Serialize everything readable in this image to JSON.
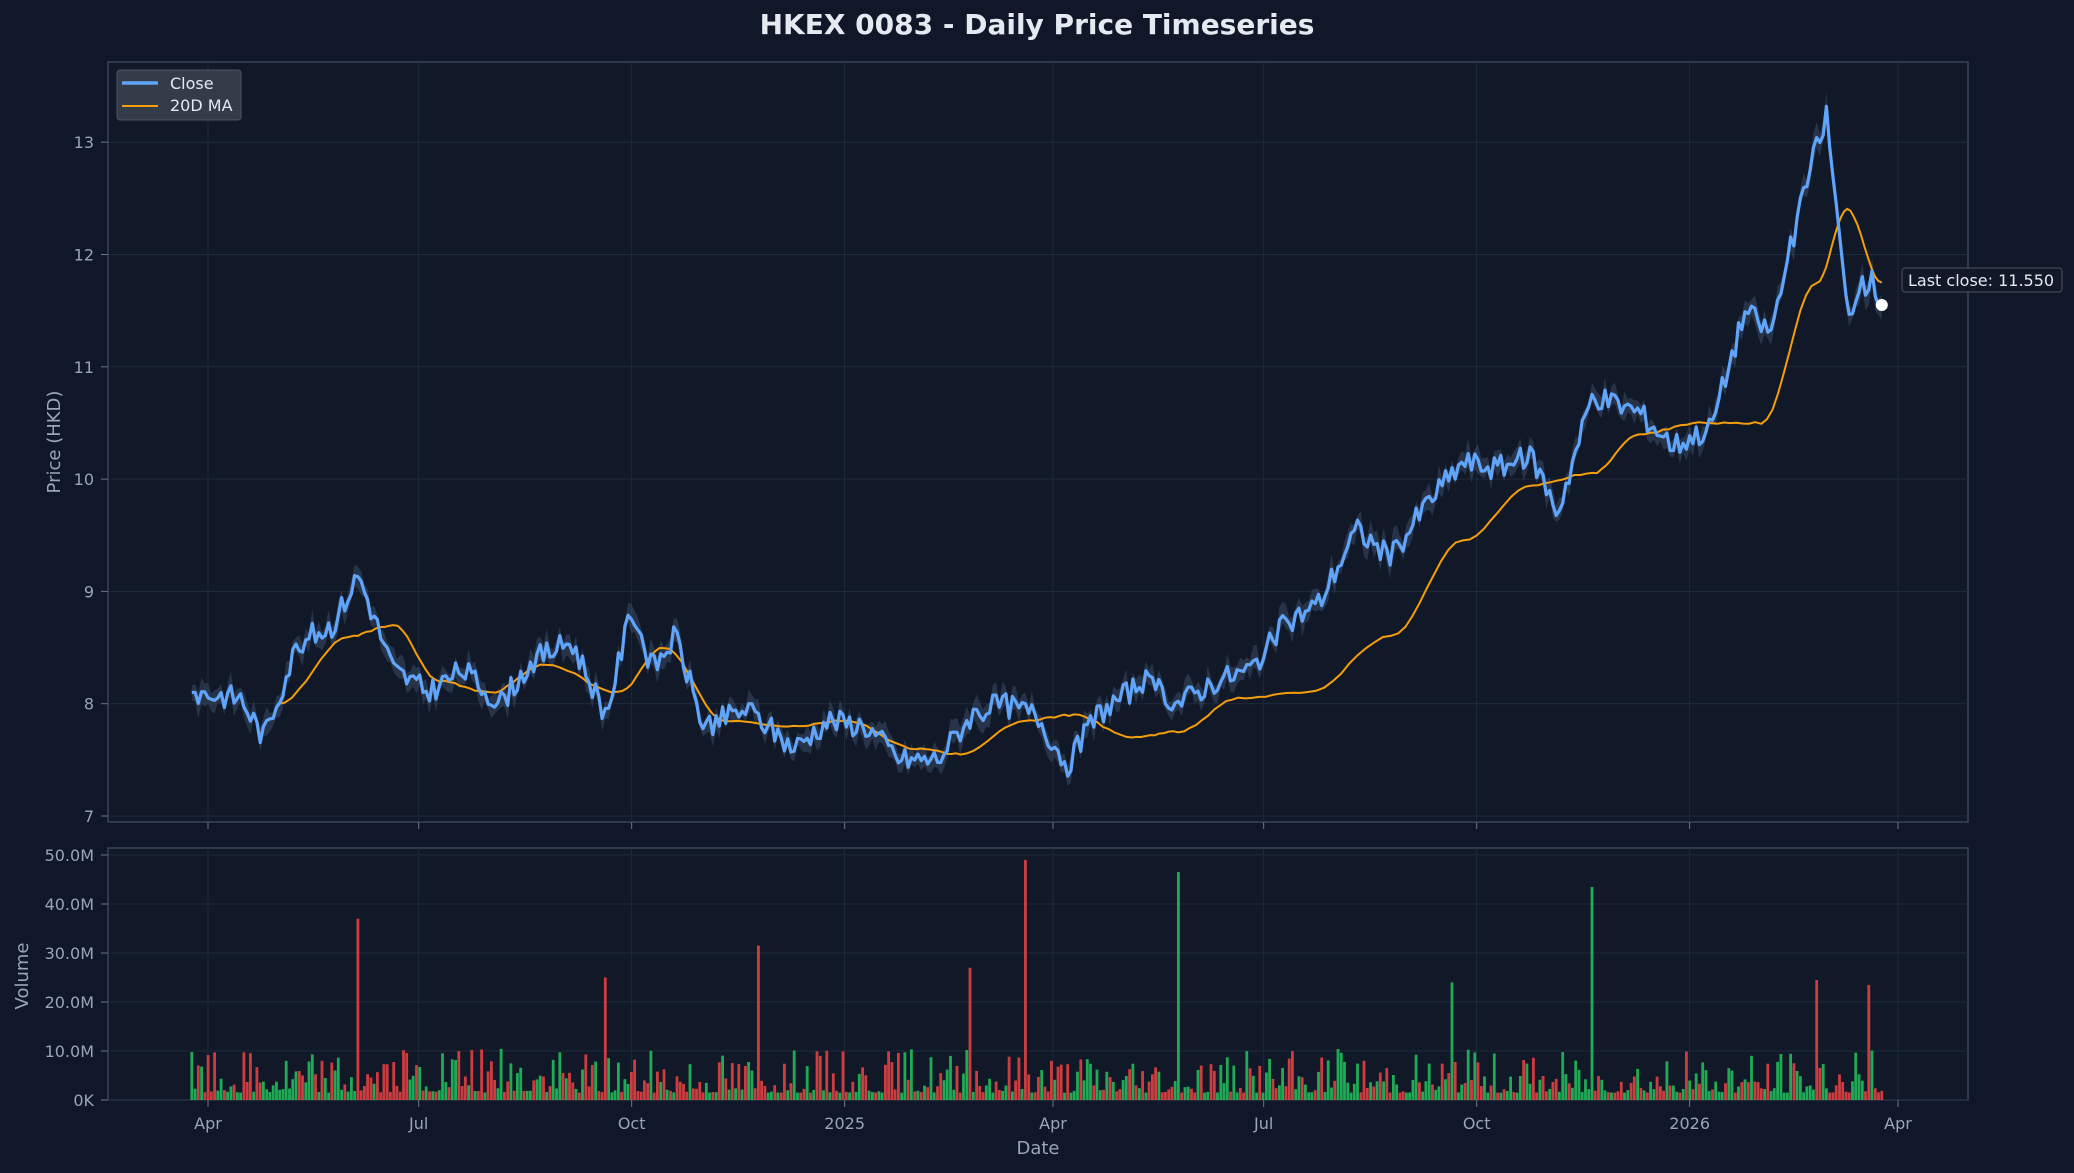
{
  "title": "HKEX 0083 - Daily Price Timeseries",
  "colors": {
    "background": "#0f1729",
    "plot_bg": "#111827",
    "close_line": "#60a5fa",
    "ma_line": "#f59e0b",
    "band": "#3b4b66",
    "volume_up": "#22c55e",
    "volume_down": "#ef4444",
    "grid": "#1f2a3d",
    "spine": "#3a4558"
  },
  "legend": {
    "items": [
      {
        "label": "Close",
        "color": "#60a5fa"
      },
      {
        "label": "20D MA",
        "color": "#f59e0b"
      }
    ]
  },
  "annotation": {
    "label": "Last close: 11.550",
    "value": 11.55
  },
  "price_axis": {
    "label": "Price (HKD)",
    "ticks": [
      "7",
      "8",
      "9",
      "10",
      "11",
      "12",
      "13"
    ]
  },
  "volume_axis": {
    "label": "Volume",
    "ticks": [
      "0K",
      "10.0M",
      "20.0M",
      "30.0M",
      "40.0M",
      "50.0M"
    ]
  },
  "x_axis": {
    "label": "Date",
    "ticks": [
      "Apr",
      "Jul",
      "Oct",
      "2025",
      "Apr",
      "Jul",
      "Oct",
      "2026",
      "Apr"
    ]
  },
  "chart_data": [
    {
      "type": "line",
      "title": "HKEX 0083 - Daily Price Timeseries",
      "xlabel": "Date",
      "ylabel": "Price (HKD)",
      "ylim": [
        6.95,
        13.7
      ],
      "x_range": [
        "2024-03-25",
        "2026-03-25"
      ],
      "grid": true,
      "legend_position": "upper left",
      "series": [
        {
          "name": "Close",
          "x": [
            "2024-03-25",
            "2024-04-15",
            "2024-04-25",
            "2024-05-10",
            "2024-05-25",
            "2024-06-05",
            "2024-06-20",
            "2024-07-05",
            "2024-07-20",
            "2024-08-05",
            "2024-08-20",
            "2024-09-05",
            "2024-09-20",
            "2024-10-01",
            "2024-10-10",
            "2024-10-20",
            "2024-11-01",
            "2024-11-20",
            "2024-12-10",
            "2024-12-25",
            "2025-01-10",
            "2025-01-25",
            "2025-02-10",
            "2025-02-25",
            "2025-03-10",
            "2025-03-25",
            "2025-04-07",
            "2025-04-20",
            "2025-05-10",
            "2025-05-25",
            "2025-06-10",
            "2025-06-25",
            "2025-07-10",
            "2025-07-25",
            "2025-08-10",
            "2025-08-25",
            "2025-09-10",
            "2025-09-25",
            "2025-10-10",
            "2025-10-25",
            "2025-11-05",
            "2025-11-20",
            "2025-12-10",
            "2025-12-25",
            "2026-01-10",
            "2026-01-25",
            "2026-02-05",
            "2026-02-20",
            "2026-03-01",
            "2026-03-10",
            "2026-03-20",
            "2026-03-25"
          ],
          "values": [
            8.1,
            8.05,
            7.7,
            8.55,
            8.7,
            9.15,
            8.3,
            8.1,
            8.3,
            8.0,
            8.4,
            8.55,
            7.9,
            8.85,
            8.3,
            8.6,
            7.8,
            7.95,
            7.6,
            7.85,
            7.8,
            7.5,
            7.5,
            7.9,
            8.0,
            7.9,
            7.45,
            7.9,
            8.2,
            8.0,
            8.2,
            8.3,
            8.7,
            8.9,
            9.55,
            9.3,
            9.8,
            10.15,
            10.1,
            10.2,
            9.7,
            10.75,
            10.6,
            10.3,
            10.45,
            11.5,
            11.3,
            12.6,
            13.25,
            11.5,
            11.8,
            11.55
          ]
        },
        {
          "name": "20D MA",
          "x": [
            "2024-05-01",
            "2024-06-01",
            "2024-06-20",
            "2024-07-10",
            "2024-08-01",
            "2024-08-25",
            "2024-09-25",
            "2024-10-15",
            "2024-11-10",
            "2024-12-10",
            "2025-01-01",
            "2025-02-01",
            "2025-02-20",
            "2025-03-20",
            "2025-04-10",
            "2025-05-05",
            "2025-05-25",
            "2025-06-20",
            "2025-07-20",
            "2025-08-25",
            "2025-09-25",
            "2025-10-25",
            "2025-11-20",
            "2025-12-10",
            "2026-01-05",
            "2026-02-01",
            "2026-02-25",
            "2026-03-10",
            "2026-03-25"
          ],
          "values": [
            8.0,
            8.6,
            8.7,
            8.2,
            8.1,
            8.35,
            8.1,
            8.5,
            7.85,
            7.8,
            7.85,
            7.6,
            7.55,
            7.85,
            7.9,
            7.7,
            7.75,
            8.05,
            8.1,
            8.6,
            9.45,
            9.95,
            10.05,
            10.4,
            10.5,
            10.5,
            11.75,
            12.4,
            11.75
          ]
        },
        {
          "name": "Volume",
          "type": "bar",
          "ylabel": "Volume",
          "ylim": [
            0,
            51000000
          ],
          "notable_spikes": [
            {
              "x": "2024-06-05",
              "value": 37000000,
              "direction": "down"
            },
            {
              "x": "2024-09-20",
              "value": 25000000,
              "direction": "down"
            },
            {
              "x": "2024-11-25",
              "value": 31500000,
              "direction": "down"
            },
            {
              "x": "2025-02-25",
              "value": 27000000,
              "direction": "down"
            },
            {
              "x": "2025-03-20",
              "value": 49000000,
              "direction": "down"
            },
            {
              "x": "2025-05-25",
              "value": 46500000,
              "direction": "up"
            },
            {
              "x": "2025-09-20",
              "value": 24000000,
              "direction": "up"
            },
            {
              "x": "2025-11-20",
              "value": 43500000,
              "direction": "up"
            },
            {
              "x": "2026-02-25",
              "value": 24500000,
              "direction": "down"
            },
            {
              "x": "2026-03-20",
              "value": 23500000,
              "direction": "down"
            }
          ],
          "typical_range": [
            2000000,
            10000000
          ]
        }
      ]
    }
  ]
}
